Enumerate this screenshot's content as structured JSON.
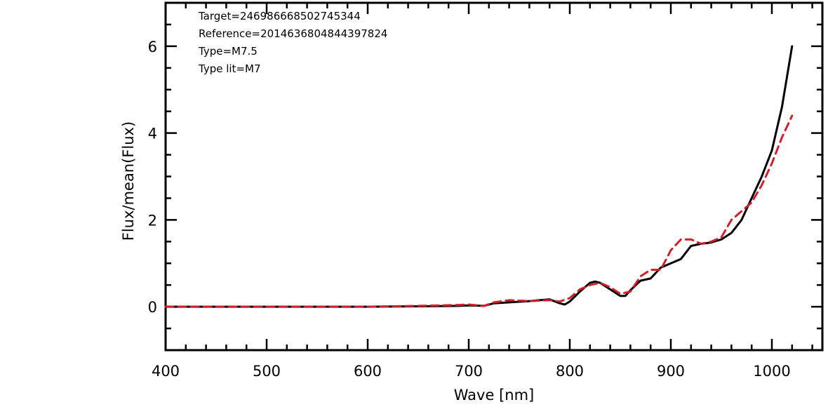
{
  "chart_data": {
    "type": "line",
    "xlabel": "Wave [nm]",
    "ylabel": "Flux/mean(Flux)",
    "xlim": [
      400,
      1050
    ],
    "ylim": [
      -1,
      7
    ],
    "x_ticks": [
      400,
      500,
      600,
      700,
      800,
      900,
      1000
    ],
    "y_ticks": [
      0,
      2,
      4,
      6
    ],
    "annotations": [
      "Target=246986668502745344",
      "Reference=2014636804844397824",
      "Type=M7.5",
      "Type lit=M7"
    ],
    "grid": false,
    "series": [
      {
        "style": "solid",
        "color": "#000000",
        "x": [
          400,
          500,
          600,
          650,
          690,
          700,
          715,
          725,
          740,
          760,
          780,
          790,
          795,
          800,
          810,
          820,
          825,
          830,
          840,
          850,
          855,
          860,
          870,
          880,
          890,
          900,
          910,
          920,
          930,
          940,
          950,
          960,
          970,
          980,
          990,
          1000,
          1010,
          1015,
          1020
        ],
        "values": [
          0.0,
          0.0,
          0.0,
          0.01,
          0.02,
          0.03,
          0.02,
          0.08,
          0.1,
          0.13,
          0.17,
          0.08,
          0.05,
          0.12,
          0.35,
          0.55,
          0.58,
          0.55,
          0.4,
          0.25,
          0.25,
          0.38,
          0.6,
          0.65,
          0.9,
          1.0,
          1.1,
          1.4,
          1.45,
          1.48,
          1.55,
          1.7,
          2.0,
          2.5,
          3.0,
          3.6,
          4.6,
          5.3,
          6.0
        ]
      },
      {
        "style": "dashed",
        "color": "#d0202a",
        "x": [
          400,
          500,
          600,
          650,
          690,
          700,
          715,
          725,
          740,
          760,
          780,
          790,
          800,
          810,
          820,
          830,
          840,
          850,
          860,
          870,
          880,
          890,
          900,
          910,
          920,
          930,
          940,
          950,
          960,
          970,
          980,
          990,
          1000,
          1010,
          1020
        ],
        "values": [
          0.0,
          0.0,
          0.0,
          0.02,
          0.04,
          0.05,
          0.02,
          0.1,
          0.15,
          0.13,
          0.15,
          0.12,
          0.2,
          0.4,
          0.5,
          0.55,
          0.45,
          0.3,
          0.35,
          0.7,
          0.85,
          0.85,
          1.3,
          1.55,
          1.55,
          1.45,
          1.5,
          1.6,
          2.0,
          2.2,
          2.4,
          2.8,
          3.3,
          3.9,
          4.4
        ]
      }
    ]
  }
}
